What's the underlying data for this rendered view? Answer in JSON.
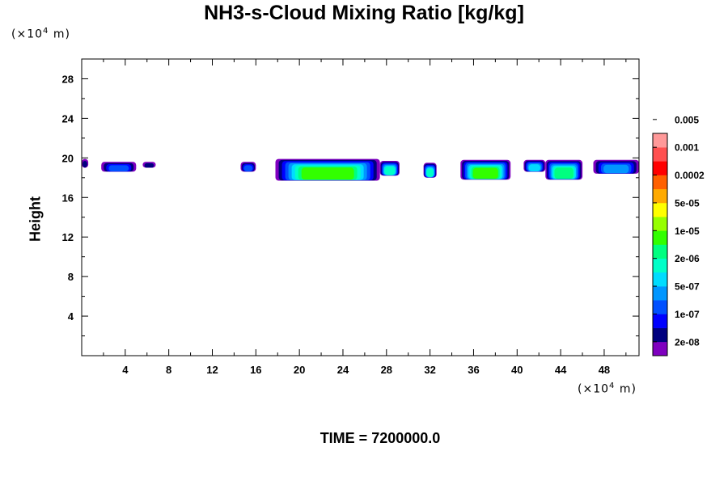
{
  "chart_data": {
    "type": "heatmap",
    "title": "NH3-s-Cloud Mixing Ratio [kg/kg]",
    "xlabel": "",
    "ylabel": "Height",
    "x_unit": {
      "prefix": "(×10",
      "exp": "4",
      "suffix": " m)"
    },
    "y_unit": {
      "prefix": "(×10",
      "exp": "4",
      "suffix": " m)"
    },
    "footer": "TIME = 7200000.0",
    "xlim": [
      0,
      51.2
    ],
    "ylim": [
      0,
      30
    ],
    "xticks": [
      4,
      8,
      12,
      16,
      20,
      24,
      28,
      32,
      36,
      40,
      44,
      48
    ],
    "yticks": [
      4,
      8,
      12,
      16,
      20,
      24,
      28
    ],
    "colorbar": {
      "colors": [
        "#7f00bf",
        "#00007f",
        "#0000ff",
        "#0050ff",
        "#0096ff",
        "#00dcff",
        "#00ffc8",
        "#00ff80",
        "#32ff00",
        "#96ff00",
        "#ffff00",
        "#ffaa00",
        "#ff6000",
        "#ff0000",
        "#ff5050",
        "#ff9999"
      ],
      "labels": [
        "2e-08",
        "1e-07",
        "5e-07",
        "2e-06",
        "1e-05",
        "5e-05",
        "0.0002",
        "0.001",
        "0.005"
      ]
    },
    "cloud_layers": [
      {
        "x_range": [
          0.0,
          0.6
        ],
        "y_range": [
          19.0,
          19.9
        ],
        "max_level": 1
      },
      {
        "x_range": [
          1.8,
          5.0
        ],
        "y_range": [
          18.6,
          19.6
        ],
        "max_level": 3
      },
      {
        "x_range": [
          5.6,
          6.8
        ],
        "y_range": [
          19.0,
          19.6
        ],
        "max_level": 1
      },
      {
        "x_range": [
          14.6,
          16.0
        ],
        "y_range": [
          18.6,
          19.6
        ],
        "max_level": 3
      },
      {
        "x_range": [
          17.8,
          27.4
        ],
        "y_range": [
          17.7,
          19.9
        ],
        "max_level": 8
      },
      {
        "x_range": [
          27.4,
          29.2
        ],
        "y_range": [
          18.2,
          19.7
        ],
        "max_level": 6
      },
      {
        "x_range": [
          31.4,
          32.6
        ],
        "y_range": [
          18.0,
          19.5
        ],
        "max_level": 6
      },
      {
        "x_range": [
          34.8,
          39.4
        ],
        "y_range": [
          17.8,
          19.8
        ],
        "max_level": 8
      },
      {
        "x_range": [
          40.6,
          42.6
        ],
        "y_range": [
          18.6,
          19.8
        ],
        "max_level": 5
      },
      {
        "x_range": [
          42.6,
          46.0
        ],
        "y_range": [
          17.8,
          19.8
        ],
        "max_level": 7
      },
      {
        "x_range": [
          47.0,
          51.2
        ],
        "y_range": [
          18.4,
          19.8
        ],
        "max_level": 4
      }
    ]
  }
}
